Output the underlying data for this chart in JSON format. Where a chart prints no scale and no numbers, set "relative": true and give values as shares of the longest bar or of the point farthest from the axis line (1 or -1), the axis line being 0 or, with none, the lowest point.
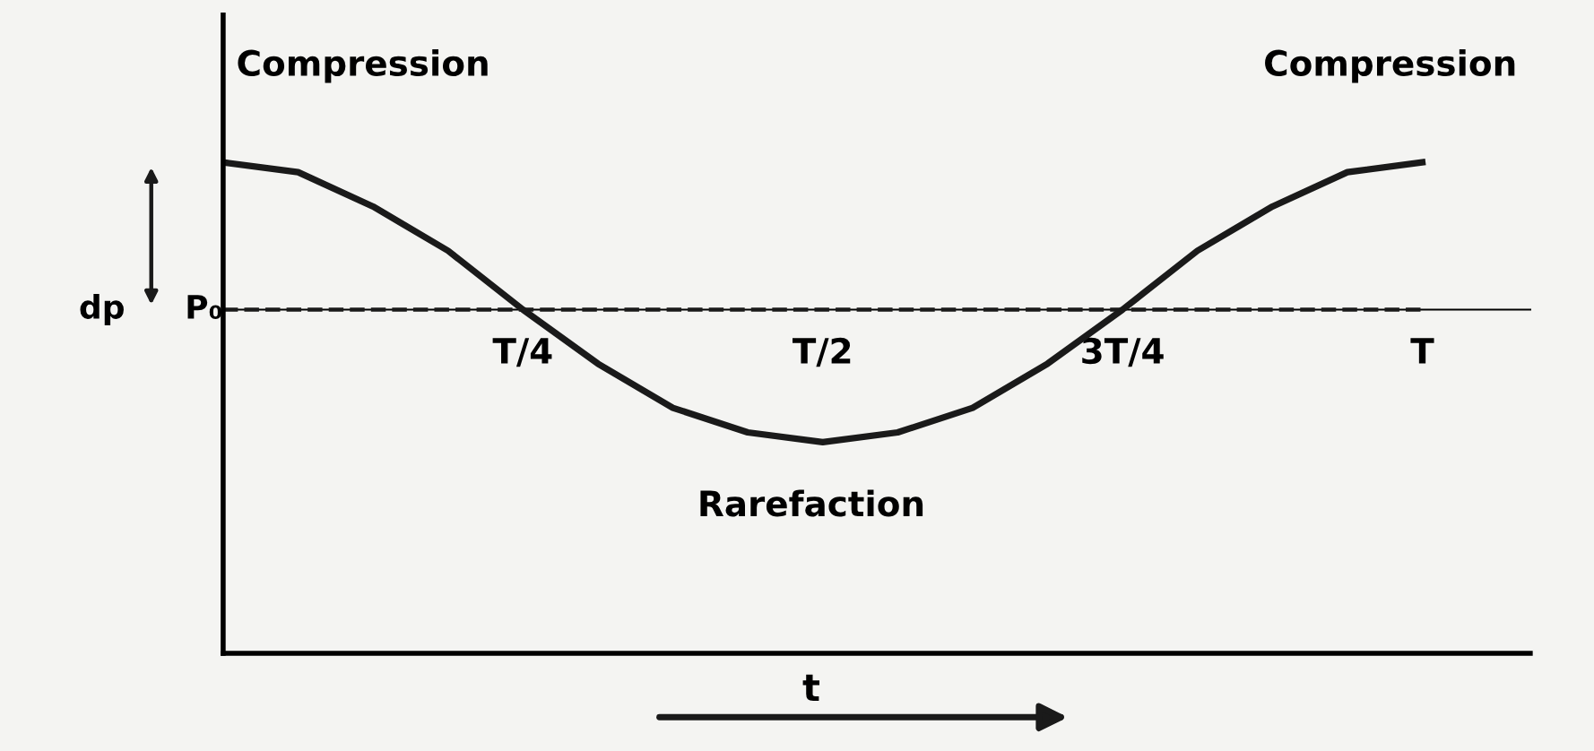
{
  "chart_data": {
    "type": "line",
    "relative": true,
    "xlabel": "t",
    "tick_labels": "x",
    "categories": [
      null,
      null,
      null,
      null,
      "T/4",
      null,
      null,
      null,
      "T/2",
      null,
      null,
      null,
      "3T/4",
      null,
      null,
      null,
      "T"
    ],
    "series": [
      {
        "color": "#1a1a1a",
        "values": [
          1.0,
          0.98,
          0.91,
          0.82,
          0.7,
          0.59,
          0.5,
          0.45,
          0.43,
          0.45,
          0.5,
          0.59,
          0.7,
          0.82,
          0.91,
          0.98,
          1.0
        ]
      }
    ],
    "ref_lines": [
      {
        "axis": "y",
        "value": 0.7,
        "label": "P₀",
        "line_style": "dashed",
        "color": "#1a1a1a"
      }
    ],
    "annotations": [
      "Compression",
      "Compression",
      "Rarefaction",
      "dp"
    ],
    "marker": "none",
    "line_style": "solid"
  }
}
